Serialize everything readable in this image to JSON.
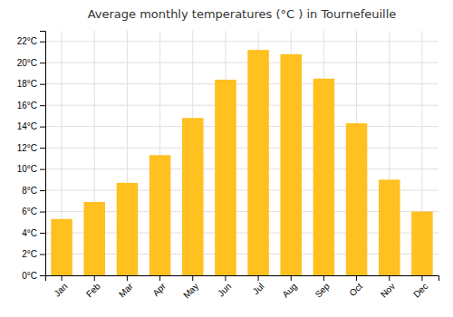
{
  "chart_data": {
    "type": "bar",
    "title": "Average monthly temperatures (°C ) in Tournefeuille",
    "categories": [
      "Jan",
      "Feb",
      "Mar",
      "Apr",
      "May",
      "Jun",
      "Jul",
      "Aug",
      "Sep",
      "Oct",
      "Nov",
      "Dec"
    ],
    "values": [
      5.3,
      6.9,
      8.7,
      11.3,
      14.8,
      18.4,
      21.2,
      20.8,
      18.5,
      14.3,
      9.0,
      6.0
    ],
    "color": "#FFC020",
    "ylim": [
      0,
      23
    ],
    "yticks": [
      {
        "value": 0,
        "label": "0°C"
      },
      {
        "value": 2,
        "label": "2°C"
      },
      {
        "value": 4,
        "label": "4°C"
      },
      {
        "value": 6,
        "label": "6°C"
      },
      {
        "value": 8,
        "label": "8°C"
      },
      {
        "value": 10,
        "label": "10°C"
      },
      {
        "value": 12,
        "label": "12°C"
      },
      {
        "value": 14,
        "label": "14°C"
      },
      {
        "value": 16,
        "label": "16°C"
      },
      {
        "value": 18,
        "label": "18°C"
      },
      {
        "value": 20,
        "label": "20°C"
      },
      {
        "value": 22,
        "label": "22°C"
      }
    ],
    "grid": true
  }
}
